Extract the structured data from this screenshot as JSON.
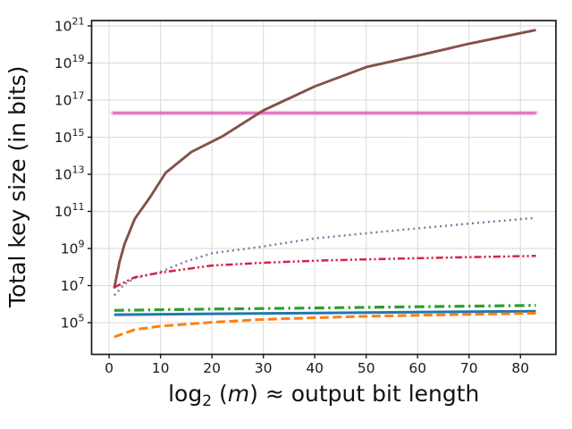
{
  "figure": {
    "background": "#ffffff",
    "spine_color": "#1a1a1a",
    "grid_color": "#dcdcdc",
    "tick_color": "#1a1a1a",
    "label_color": "#111111"
  },
  "chart_data": {
    "type": "line",
    "title": "",
    "xlabel": "log2 (m) ≈ output bit length",
    "xlabel_parts": [
      {
        "t": "log",
        "style": "normal"
      },
      {
        "t": "2",
        "style": "sub"
      },
      {
        "t": " (",
        "style": "normal"
      },
      {
        "t": "m",
        "style": "italic"
      },
      {
        "t": ")",
        "style": "normal"
      },
      {
        "t": " ≈  ",
        "style": "normal"
      },
      {
        "t": "output bit length",
        "style": "normal"
      }
    ],
    "ylabel": "Total key size (in bits)",
    "x_ticks": [
      0,
      10,
      20,
      30,
      40,
      50,
      60,
      70,
      80
    ],
    "y_ticks_exponents": [
      5,
      7,
      9,
      11,
      13,
      15,
      17,
      19,
      21
    ],
    "x_range": [
      -3.4,
      86.9
    ],
    "y_log10_range": [
      3.29,
      21.29
    ],
    "grid": true,
    "legend": "none",
    "series": [
      {
        "name": "pink-constant-line",
        "color": "#e372be",
        "style": "solid",
        "width": 2.8,
        "halo": true,
        "x": [
          0.7,
          83
        ],
        "y": [
          2e+16,
          2e+16
        ]
      },
      {
        "name": "brown-steep-curve",
        "color": "#835149",
        "style": "solid",
        "width": 2.9,
        "halo": false,
        "x": [
          1,
          2,
          3,
          5,
          8,
          11,
          16,
          22,
          30,
          40,
          50,
          60,
          70,
          83
        ],
        "y": [
          7000000.0,
          180000000.0,
          1700000000.0,
          40000000000.0,
          600000000000.0,
          12000000000000.0,
          160000000000000.0,
          1100000000000000.0,
          2.8e+16,
          5.5e+17,
          6e+18,
          2.5e+19,
          1.1e+20,
          6e+20
        ]
      },
      {
        "name": "purple-dotted-curve",
        "color": "#7d76a5",
        "style": "dotted",
        "width": 2.4,
        "halo": false,
        "x": [
          1,
          3,
          5,
          10,
          15,
          20,
          30,
          40,
          55,
          70,
          83
        ],
        "y": [
          3000000.0,
          12000000.0,
          25000000.0,
          55000000.0,
          200000000.0,
          550000000.0,
          1300000000.0,
          3500000000.0,
          9000000000.0,
          22000000000.0,
          45000000000.0
        ]
      },
      {
        "name": "red-dashdotdot-curve",
        "color": "#d42345",
        "style": "dashdotdot",
        "width": 2.5,
        "halo": false,
        "x": [
          1,
          5,
          10,
          20,
          30,
          40,
          50,
          60,
          70,
          83
        ],
        "y": [
          8000000.0,
          28000000.0,
          50000000.0,
          120000000.0,
          170000000.0,
          220000000.0,
          260000000.0,
          300000000.0,
          340000000.0,
          400000000.0
        ]
      },
      {
        "name": "green-dashdot-line",
        "color": "#2ca02c",
        "style": "dashdot",
        "width": 3.2,
        "halo": false,
        "x": [
          1,
          20,
          40,
          60,
          83
        ],
        "y": [
          460000.0,
          540000.0,
          620000.0,
          720000.0,
          850000.0
        ]
      },
      {
        "name": "blue-solid-line",
        "color": "#1f77b4",
        "style": "solid",
        "width": 3.0,
        "halo": false,
        "x": [
          1,
          20,
          40,
          60,
          83
        ],
        "y": [
          270000.0,
          300000.0,
          330000.0,
          370000.0,
          410000.0
        ]
      },
      {
        "name": "orange-dashed-curve",
        "color": "#ff7f0e",
        "style": "dashed",
        "width": 3.0,
        "halo": false,
        "x": [
          1,
          5,
          10,
          20,
          30,
          40,
          50,
          60,
          70,
          83
        ],
        "y": [
          17000.0,
          42000.0,
          65000.0,
          105000.0,
          150000.0,
          185000.0,
          220000.0,
          250000.0,
          280000.0,
          320000.0
        ]
      }
    ]
  }
}
